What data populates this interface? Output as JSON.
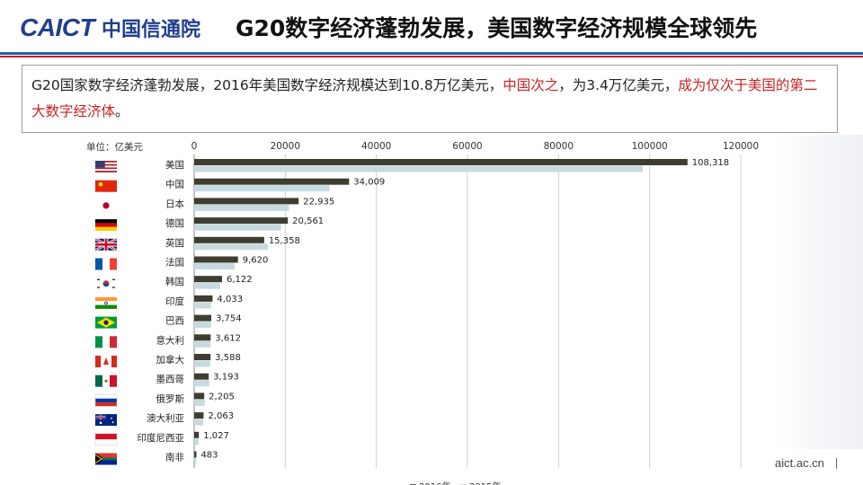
{
  "header": {
    "logo_latin": "CAICT",
    "logo_cn": "中国信通院",
    "title": "G20数字经济蓬勃发展，美国数字经济规模全球领先"
  },
  "summary": {
    "part1": "G20国家数字经济蓬勃发展，2016年美国数字经济规模达到10.8万亿美元，",
    "part2": "中国次之",
    "part3": "，为3.4万亿美元，",
    "part4": "成为仅次于美国的第二大数字经济体",
    "part5": "。"
  },
  "footer": {
    "url": "aict.ac.cn"
  },
  "colors": {
    "bar_2016": "#3f3d30",
    "bar_2015": "#c5dbe0",
    "accent_red": "#c82323",
    "brand_blue": "#1f3f8f"
  },
  "chart_data": {
    "type": "bar",
    "orientation": "horizontal",
    "unit_label": "单位：亿美元",
    "xlim": [
      0,
      120000
    ],
    "x_ticks": [
      "0",
      "20000",
      "40000",
      "60000",
      "80000",
      "100000",
      "120000"
    ],
    "x_tick_values": [
      0,
      20000,
      40000,
      60000,
      80000,
      100000,
      120000
    ],
    "grid": true,
    "legend_position": "bottom",
    "categories": [
      "美国",
      "中国",
      "日本",
      "德国",
      "英国",
      "法国",
      "韩国",
      "印度",
      "巴西",
      "意大利",
      "加拿大",
      "墨西哥",
      "俄罗斯",
      "澳大利亚",
      "印度尼西亚",
      "南非"
    ],
    "flags": [
      "us",
      "cn",
      "jp",
      "de",
      "gb",
      "fr",
      "kr",
      "in",
      "br",
      "it",
      "ca",
      "mx",
      "ru",
      "au",
      "id",
      "za"
    ],
    "series": [
      {
        "name": "2016年",
        "values": [
          108318,
          34009,
          22935,
          20561,
          15358,
          9620,
          6122,
          4033,
          3754,
          3612,
          3588,
          3193,
          2205,
          2063,
          1027,
          483
        ]
      },
      {
        "name": "2015年",
        "values": [
          98500,
          29700,
          20800,
          19100,
          16200,
          8900,
          5700,
          3700,
          3700,
          3600,
          3500,
          3300,
          2300,
          2000,
          950,
          450
        ]
      }
    ],
    "data_labels": [
      "108,318",
      "34,009",
      "22,935",
      "20,561",
      "15,358",
      "9,620",
      "6,122",
      "4,033",
      "3,754",
      "3,612",
      "3,588",
      "3,193",
      "2,205",
      "2,063",
      "1,027",
      "483"
    ]
  }
}
